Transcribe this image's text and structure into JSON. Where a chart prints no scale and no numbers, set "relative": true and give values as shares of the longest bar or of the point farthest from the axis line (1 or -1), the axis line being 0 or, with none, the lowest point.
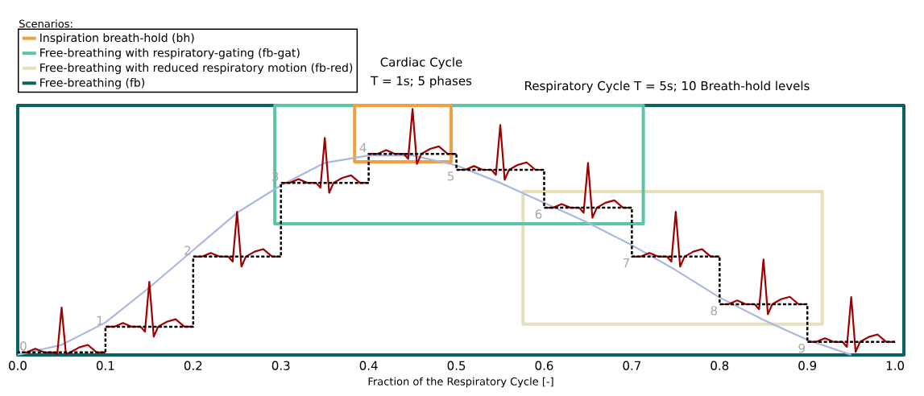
{
  "chart_data": {
    "type": "line",
    "relative": true,
    "xlabel": "Fraction of the Respiratory Cycle [-]",
    "legend_title": "Scenarios:",
    "legend": "top left",
    "xlim": [
      0,
      1.01
    ],
    "xticks": [
      {
        "value": 0,
        "label": "0.0"
      },
      0.1,
      0.2,
      0.3,
      0.4,
      0.5,
      0.6,
      0.7,
      0.8,
      0.9,
      {
        "value": 1.0,
        "label": "1.0"
      }
    ],
    "series": [
      {
        "name": "Free-breathing (fb)",
        "color": "#0b6262",
        "x": [
          0,
          0,
          1.01,
          1.01,
          0,
          0
        ],
        "values": [
          0,
          1,
          1,
          0,
          0,
          1
        ]
      },
      {
        "name": "Free-breathing with reduced respiratory motion (fb-red)",
        "color": "#e6e0b8",
        "x": [
          0.576,
          0.576,
          0.917,
          0.917,
          0.576,
          0.576
        ],
        "values": [
          0.123,
          0.655,
          0.655,
          0.123,
          0.123,
          0.655
        ]
      },
      {
        "name": "Free-breathing with respiratory-gating (fb-gat)",
        "color": "#5cc4a8",
        "x": [
          0.293,
          0.293,
          0.713,
          0.713,
          0.293,
          0.293
        ],
        "values": [
          0.526,
          1,
          1,
          0.526,
          0.526,
          1
        ]
      },
      {
        "name": "Inspiration breath-hold (bh)",
        "color": "#f0a040",
        "x": [
          0.384,
          0.384,
          0.494,
          0.494,
          0.384,
          0.384
        ],
        "values": [
          0.774,
          1,
          1,
          0.774,
          0.774,
          1
        ]
      },
      {
        "color": "#a8b8e0",
        "x": [
          0,
          0.05,
          0.1,
          0.15,
          0.2,
          0.25,
          0.3,
          0.35,
          0.4,
          0.45,
          0.5,
          0.55,
          0.6,
          0.65,
          0.7,
          0.75,
          0.8,
          0.85,
          0.9,
          0.95
        ],
        "values": [
          0.0,
          0.04,
          0.13,
          0.27,
          0.42,
          0.57,
          0.68,
          0.77,
          0.8,
          0.8,
          0.76,
          0.69,
          0.61,
          0.53,
          0.44,
          0.34,
          0.23,
          0.14,
          0.06,
          0.0
        ]
      },
      {
        "color": "#a00000",
        "x": [
          0.005,
          0.01,
          0.02,
          0.03,
          0.04,
          0.045,
          0.05,
          0.055,
          0.06,
          0.07,
          0.08,
          0.09,
          0.1
        ],
        "values": [
          0.01,
          0.01,
          0.025,
          0.01,
          0.01,
          0.002,
          0.19,
          0.002,
          0.01,
          0.03,
          0.04,
          0.01,
          0.01
        ]
      },
      {
        "color": "#a00000",
        "x": [
          0.1,
          0.11,
          0.12,
          0.13,
          0.14,
          0.145,
          0.15,
          0.155,
          0.16,
          0.17,
          0.18,
          0.19,
          0.2
        ],
        "values": [
          0.113,
          0.113,
          0.128,
          0.113,
          0.113,
          0.093,
          0.293,
          0.073,
          0.113,
          0.133,
          0.143,
          0.113,
          0.113
        ]
      },
      {
        "color": "#a00000",
        "x": [
          0.2,
          0.21,
          0.22,
          0.23,
          0.24,
          0.245,
          0.25,
          0.255,
          0.26,
          0.27,
          0.28,
          0.29,
          0.3
        ],
        "values": [
          0.394,
          0.394,
          0.409,
          0.394,
          0.394,
          0.374,
          0.574,
          0.354,
          0.394,
          0.414,
          0.424,
          0.394,
          0.394
        ]
      },
      {
        "color": "#a00000",
        "x": [
          0.3,
          0.31,
          0.32,
          0.33,
          0.34,
          0.345,
          0.35,
          0.355,
          0.36,
          0.37,
          0.38,
          0.39,
          0.4
        ],
        "values": [
          0.69,
          0.69,
          0.705,
          0.69,
          0.69,
          0.67,
          0.87,
          0.65,
          0.69,
          0.71,
          0.72,
          0.69,
          0.69
        ]
      },
      {
        "color": "#a00000",
        "x": [
          0.4,
          0.41,
          0.42,
          0.43,
          0.44,
          0.445,
          0.45,
          0.455,
          0.46,
          0.47,
          0.48,
          0.49,
          0.5
        ],
        "values": [
          0.806,
          0.806,
          0.821,
          0.806,
          0.806,
          0.786,
          0.986,
          0.766,
          0.806,
          0.826,
          0.836,
          0.806,
          0.806
        ]
      },
      {
        "color": "#a00000",
        "x": [
          0.5,
          0.51,
          0.52,
          0.53,
          0.54,
          0.545,
          0.55,
          0.555,
          0.56,
          0.57,
          0.58,
          0.59,
          0.6
        ],
        "values": [
          0.742,
          0.742,
          0.757,
          0.742,
          0.742,
          0.722,
          0.922,
          0.702,
          0.742,
          0.762,
          0.772,
          0.742,
          0.742
        ]
      },
      {
        "color": "#a00000",
        "x": [
          0.6,
          0.61,
          0.62,
          0.63,
          0.64,
          0.645,
          0.65,
          0.655,
          0.66,
          0.67,
          0.68,
          0.69,
          0.7
        ],
        "values": [
          0.59,
          0.59,
          0.605,
          0.59,
          0.59,
          0.57,
          0.77,
          0.55,
          0.59,
          0.61,
          0.62,
          0.59,
          0.59
        ]
      },
      {
        "color": "#a00000",
        "x": [
          0.7,
          0.71,
          0.72,
          0.73,
          0.74,
          0.745,
          0.75,
          0.755,
          0.76,
          0.77,
          0.78,
          0.79,
          0.8
        ],
        "values": [
          0.394,
          0.394,
          0.409,
          0.394,
          0.394,
          0.374,
          0.574,
          0.354,
          0.394,
          0.414,
          0.424,
          0.394,
          0.394
        ]
      },
      {
        "color": "#a00000",
        "x": [
          0.8,
          0.81,
          0.82,
          0.83,
          0.84,
          0.845,
          0.85,
          0.855,
          0.86,
          0.87,
          0.88,
          0.89,
          0.9
        ],
        "values": [
          0.203,
          0.203,
          0.218,
          0.203,
          0.203,
          0.183,
          0.383,
          0.163,
          0.203,
          0.223,
          0.233,
          0.203,
          0.203
        ]
      },
      {
        "color": "#a00000",
        "x": [
          0.9,
          0.91,
          0.92,
          0.93,
          0.94,
          0.945,
          0.95,
          0.955,
          0.96,
          0.97,
          0.98,
          0.99,
          1.0
        ],
        "values": [
          0.052,
          0.052,
          0.067,
          0.052,
          0.052,
          0.032,
          0.232,
          0.012,
          0.052,
          0.072,
          0.082,
          0.052,
          0.052
        ]
      },
      {
        "type": "step",
        "color": "#000000",
        "line_style": "dashed",
        "x": [
          0,
          0.1,
          0.2,
          0.3,
          0.4,
          0.5,
          0.6,
          0.7,
          0.8,
          0.9,
          1.0
        ],
        "values": [
          0.01,
          0.113,
          0.394,
          0.69,
          0.806,
          0.742,
          0.59,
          0.394,
          0.203,
          0.052,
          0.052
        ]
      }
    ],
    "annotations": [
      "0",
      "1",
      "2",
      "3",
      "4",
      "5",
      "6",
      "7",
      "8",
      "9",
      "Cardiac Cycle",
      "T = 1s; 5 phases",
      "Respiratory Cycle T = 5s; 10 Breath-hold levels"
    ]
  }
}
